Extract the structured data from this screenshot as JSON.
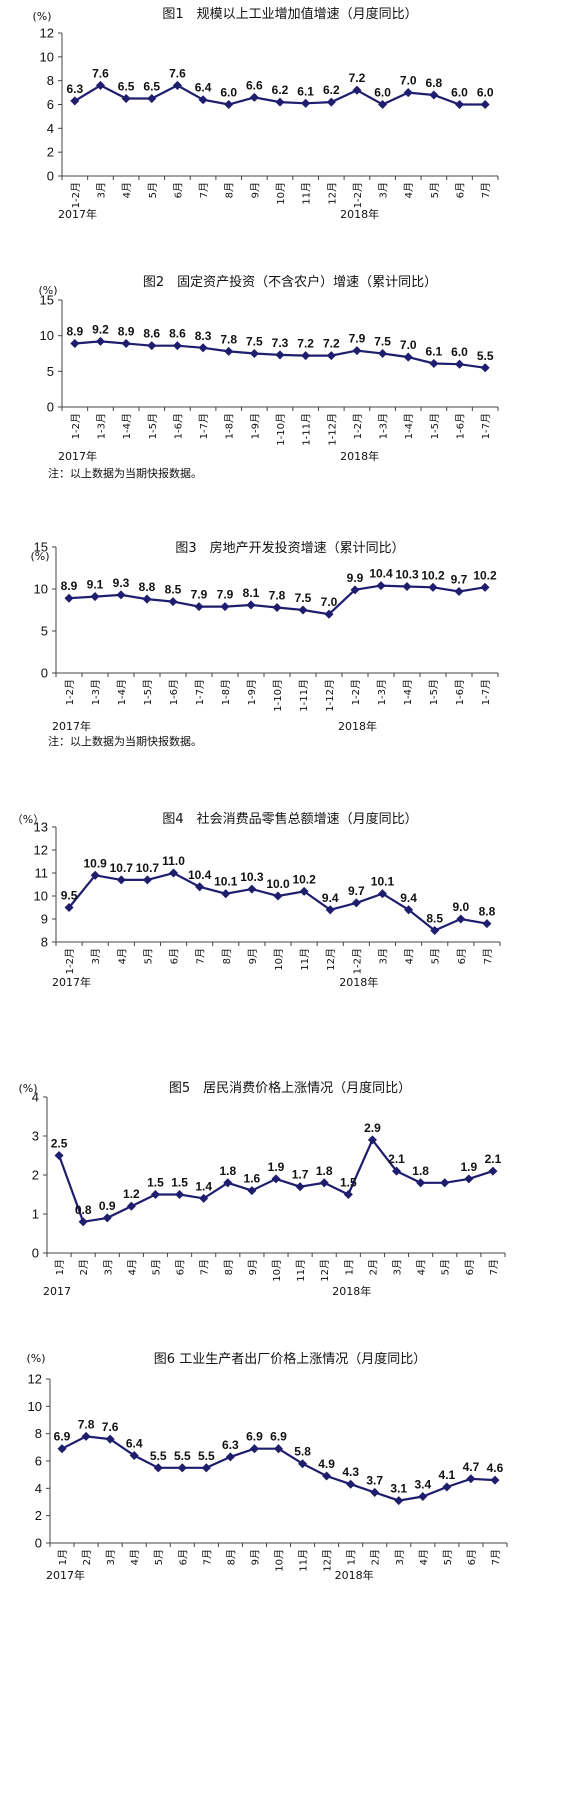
{
  "colors": {
    "line": "#1f1d6e",
    "axis": "#444444",
    "text": "#111111"
  },
  "chart_data": [
    {
      "type": "line",
      "title": "图1　规模以上工业增加值增速（月度同比）",
      "unit": "(%)",
      "ylim": [
        0,
        12
      ],
      "yticks": [
        0,
        2,
        4,
        6,
        8,
        10,
        12
      ],
      "categories": [
        "1-2月",
        "3月",
        "4月",
        "5月",
        "6月",
        "7月",
        "8月",
        "9月",
        "10月",
        "11月",
        "12月",
        "1-2月",
        "3月",
        "4月",
        "5月",
        "6月",
        "7月"
      ],
      "values": [
        6.3,
        7.6,
        6.5,
        6.5,
        7.6,
        6.4,
        6.0,
        6.6,
        6.2,
        6.1,
        6.2,
        7.2,
        6.0,
        7.0,
        6.8,
        6.0,
        6.0
      ],
      "labels": [
        "6.3",
        "7.6",
        "6.5",
        "6.5",
        "7.6",
        "6.4",
        "6.0",
        "6.6",
        "6.2",
        "6.1",
        "6.2",
        "7.2",
        "6.0",
        "7.0",
        "6.8",
        "6.0",
        "6.0"
      ],
      "years": [
        {
          "text": "2017年",
          "index": 0
        },
        {
          "text": "2018年",
          "index": 11
        }
      ],
      "note": ""
    },
    {
      "type": "line",
      "title": "图2　固定资产投资（不含农户）增速（累计同比）",
      "unit": "(%)",
      "ylim": [
        0,
        15
      ],
      "yticks": [
        0,
        5,
        10,
        15
      ],
      "categories": [
        "1-2月",
        "1-3月",
        "1-4月",
        "1-5月",
        "1-6月",
        "1-7月",
        "1-8月",
        "1-9月",
        "1-10月",
        "1-11月",
        "1-12月",
        "1-2月",
        "1-3月",
        "1-4月",
        "1-5月",
        "1-6月",
        "1-7月"
      ],
      "values": [
        8.9,
        9.2,
        8.9,
        8.6,
        8.6,
        8.3,
        7.8,
        7.5,
        7.3,
        7.2,
        7.2,
        7.9,
        7.5,
        7.0,
        6.1,
        6.0,
        5.5
      ],
      "labels": [
        "8.9",
        "9.2",
        "8.9",
        "8.6",
        "8.6",
        "8.3",
        "7.8",
        "7.5",
        "7.3",
        "7.2",
        "7.2",
        "7.9",
        "7.5",
        "7.0",
        "6.1",
        "6.0",
        "5.5"
      ],
      "years": [
        {
          "text": "2017年",
          "index": 0
        },
        {
          "text": "2018年",
          "index": 11
        }
      ],
      "note": "注：以上数据为当期快报数据。"
    },
    {
      "type": "line",
      "title": "图3　房地产开发投资增速（累计同比）",
      "unit": "(%)",
      "ylim": [
        0,
        15
      ],
      "yticks": [
        0,
        5,
        10,
        15
      ],
      "categories": [
        "1-2月",
        "1-3月",
        "1-4月",
        "1-5月",
        "1-6月",
        "1-7月",
        "1-8月",
        "1-9月",
        "1-10月",
        "1-11月",
        "1-12月",
        "1-2月",
        "1-3月",
        "1-4月",
        "1-5月",
        "1-6月",
        "1-7月"
      ],
      "values": [
        8.9,
        9.1,
        9.3,
        8.8,
        8.5,
        7.9,
        7.9,
        8.1,
        7.8,
        7.5,
        7.0,
        9.9,
        10.4,
        10.3,
        10.2,
        9.7,
        10.2
      ],
      "labels": [
        "8.9",
        "9.1",
        "9.3",
        "8.8",
        "8.5",
        "7.9",
        "7.9",
        "8.1",
        "7.8",
        "7.5",
        "7.0",
        "9.9",
        "10.4",
        "10.3",
        "10.2",
        "9.7",
        "10.2"
      ],
      "years": [
        {
          "text": "2017年",
          "index": 0
        },
        {
          "text": "2018年",
          "index": 11
        }
      ],
      "note": "注：以上数据为当期快报数据。"
    },
    {
      "type": "line",
      "title": "图4　社会消费品零售总额增速（月度同比）",
      "unit": "（%）",
      "ylim": [
        8,
        13
      ],
      "yticks": [
        8,
        9,
        10,
        11,
        12,
        13
      ],
      "categories": [
        "1-2月",
        "3月",
        "4月",
        "5月",
        "6月",
        "7月",
        "8月",
        "9月",
        "10月",
        "11月",
        "12月",
        "1-2月",
        "3月",
        "4月",
        "5月",
        "6月",
        "7月"
      ],
      "values": [
        9.5,
        10.9,
        10.7,
        10.7,
        11.0,
        10.4,
        10.1,
        10.3,
        10.0,
        10.2,
        9.4,
        9.7,
        10.1,
        9.4,
        8.5,
        9.0,
        8.8
      ],
      "labels": [
        "9.5",
        "10.9",
        "10.7",
        "10.7",
        "11.0",
        "10.4",
        "10.1",
        "10.3",
        "10.0",
        "10.2",
        "9.4",
        "9.7",
        "10.1",
        "9.4",
        "8.5",
        "9.0",
        "8.8"
      ],
      "years": [
        {
          "text": "2017年",
          "index": 0
        },
        {
          "text": "2018年",
          "index": 11
        }
      ],
      "note": ""
    },
    {
      "type": "line",
      "title": "图5　居民消费价格上涨情况（月度同比）",
      "unit": "(%)",
      "ylim": [
        0,
        4
      ],
      "yticks": [
        0,
        1,
        2,
        3,
        4
      ],
      "categories": [
        "1月",
        "2月",
        "3月",
        "4月",
        "5月",
        "6月",
        "7月",
        "8月",
        "9月",
        "10月",
        "11月",
        "12月",
        "1月",
        "2月",
        "3月",
        "4月",
        "5月",
        "6月",
        "7月"
      ],
      "values": [
        2.5,
        0.8,
        0.9,
        1.2,
        1.5,
        1.5,
        1.4,
        1.8,
        1.6,
        1.9,
        1.7,
        1.8,
        1.5,
        2.9,
        2.1,
        1.8,
        1.8,
        1.9,
        2.1
      ],
      "labels": [
        "2.5",
        "0.8",
        "0.9",
        "1.2",
        "1.5",
        "1.5",
        "1.4",
        "1.8",
        "1.6",
        "1.9",
        "1.7",
        "1.8",
        "1.5",
        "2.9",
        "2.1",
        "1.8",
        "",
        "1.9",
        "2.1"
      ],
      "years": [
        {
          "text": "2017",
          "index": 0
        },
        {
          "text": "2018年",
          "index": 12
        }
      ],
      "note": ""
    },
    {
      "type": "line",
      "title": "图6 工业生产者出厂价格上涨情况（月度同比）",
      "unit": "(%)",
      "ylim": [
        0,
        12
      ],
      "yticks": [
        0,
        2,
        4,
        6,
        8,
        10,
        12
      ],
      "categories": [
        "1月",
        "2月",
        "3月",
        "4月",
        "5月",
        "6月",
        "7月",
        "8月",
        "9月",
        "10月",
        "11月",
        "12月",
        "1月",
        "2月",
        "3月",
        "4月",
        "5月",
        "6月",
        "7月"
      ],
      "values": [
        6.9,
        7.8,
        7.6,
        6.4,
        5.5,
        5.5,
        5.5,
        6.3,
        6.9,
        6.9,
        5.8,
        4.9,
        4.3,
        3.7,
        3.1,
        3.4,
        4.1,
        4.7,
        4.6
      ],
      "labels": [
        "6.9",
        "7.8",
        "7.6",
        "6.4",
        "5.5",
        "5.5",
        "5.5",
        "6.3",
        "6.9",
        "6.9",
        "5.8",
        "4.9",
        "4.3",
        "3.7",
        "3.1",
        "3.4",
        "4.1",
        "4.7",
        "4.6"
      ],
      "years": [
        {
          "text": "2017年",
          "index": 0
        },
        {
          "text": "2018年",
          "index": 12
        }
      ],
      "note": ""
    }
  ]
}
